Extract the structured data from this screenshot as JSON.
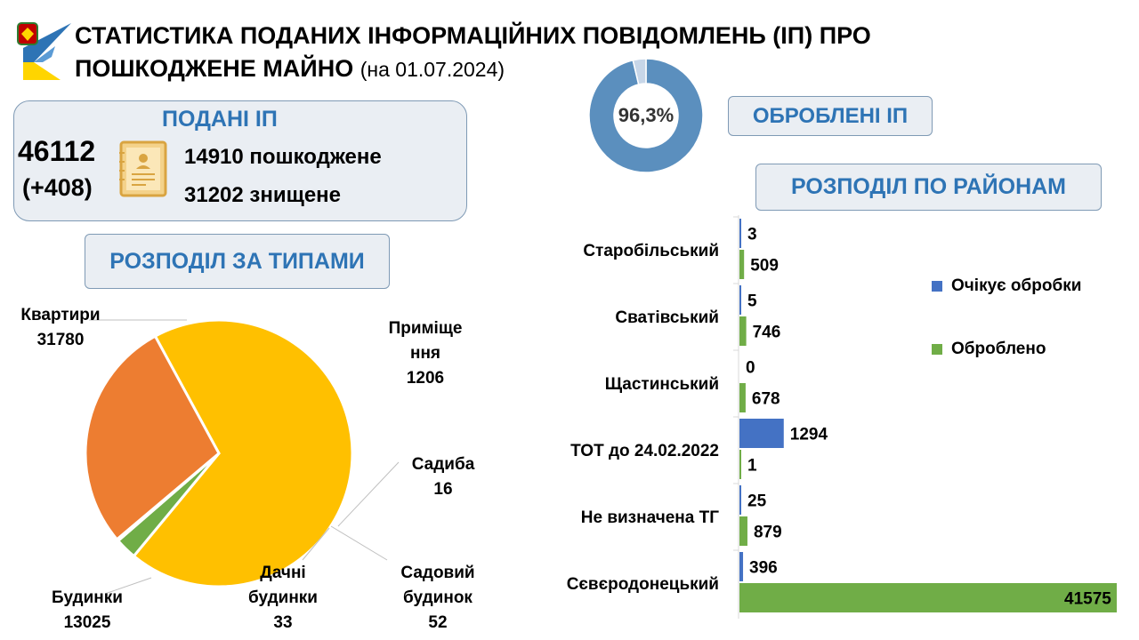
{
  "header": {
    "title_line1": "СТАТИСТИКА ПОДАНИХ ІНФОРМАЦІЙНИХ ПОВІДОМЛЕНЬ (ІП) ПРО",
    "title_line2": "ПОШКОДЖЕНЕ МАЙНО",
    "date": "(на 01.07.2024)"
  },
  "submitted": {
    "heading": "ПОДАНІ ІП",
    "total": "46112",
    "delta": "(+408)",
    "damaged": "14910 пошкоджене",
    "destroyed": "31202 знищене"
  },
  "processed": {
    "heading": "ОБРОБЛЕНІ ІП",
    "percent_label": "96,3%",
    "percent": 96.3
  },
  "sections": {
    "types": "РОЗПОДІЛ ЗА ТИПАМИ",
    "districts": "РОЗПОДІЛ ПО РАЙОНАМ"
  },
  "colors": {
    "accent_blue": "#2e74b5",
    "donut_main": "#5b8fbe",
    "donut_rest": "#c7d6e8",
    "pie_apartments": "#ffc000",
    "pie_houses": "#ed7d31",
    "pie_premises": "#70ad47",
    "pie_small": "#a5a5a5",
    "bar_pending": "#4472c4",
    "bar_processed": "#70ad47"
  },
  "chart_data": [
    {
      "type": "pie",
      "slices": [
        {
          "label": "Квартири",
          "value": 31780,
          "color": "#ffc000"
        },
        {
          "label": "Приміще ння",
          "value": 1206,
          "color": "#70ad47"
        },
        {
          "label": "Садиба",
          "value": 16,
          "color": "#a5a5a5"
        },
        {
          "label": "Садовий будинок",
          "value": 52,
          "color": "#5b9bd5"
        },
        {
          "label": "Дачні будинки",
          "value": 33,
          "color": "#264478"
        },
        {
          "label": "Будинки",
          "value": 13025,
          "color": "#ed7d31"
        }
      ]
    },
    {
      "type": "bar",
      "orientation": "horizontal",
      "categories": [
        "Старобільський",
        "Сватівський",
        "Щастинський",
        "ТОТ до 24.02.2022",
        "Не визначена ТГ",
        "Сєвєродонецький"
      ],
      "series": [
        {
          "name": "Очікує обробки",
          "values": [
            3,
            5,
            0,
            1294,
            25,
            396
          ],
          "color": "#4472c4"
        },
        {
          "name": "Оброблено",
          "values": [
            509,
            746,
            678,
            1,
            879,
            41575
          ],
          "color": "#70ad47"
        }
      ],
      "legend": "right"
    }
  ]
}
